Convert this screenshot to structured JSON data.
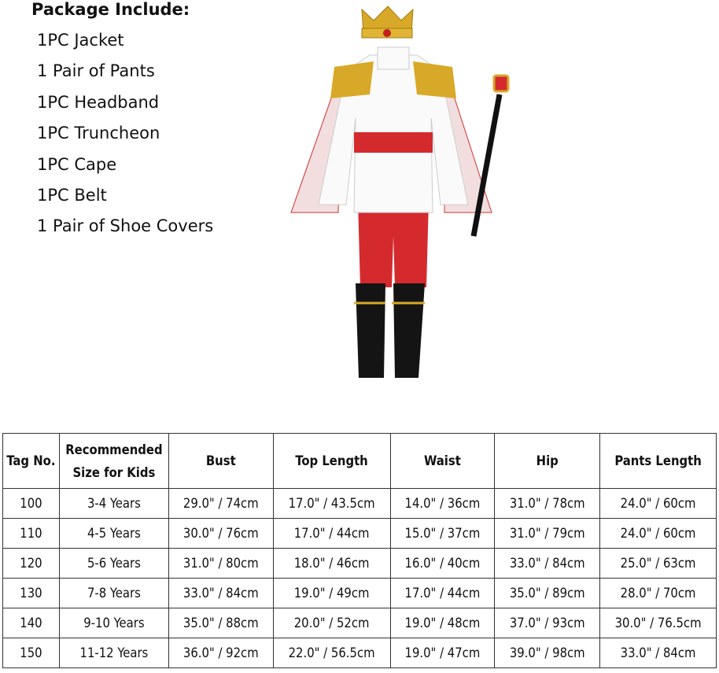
{
  "package": {
    "title": "Package Include:",
    "items": [
      "1PC Jacket",
      "1 Pair of Pants",
      "1PC Headband",
      "1PC Truncheon",
      "1PC Cape",
      "1PC Belt",
      "1 Pair of Shoe Covers"
    ]
  },
  "colors": {
    "costume_red": "#d42a2e",
    "gold": "#d8a928",
    "boot": "#141414"
  },
  "size_table": {
    "headers": [
      "Tag No.",
      "Recommended Size for Kids",
      "Bust",
      "Top Length",
      "Waist",
      "Hip",
      "Pants Length"
    ],
    "rows": [
      [
        "100",
        "3-4 Years",
        "29.0\" / 74cm",
        "17.0\" / 43.5cm",
        "14.0\" / 36cm",
        "31.0\" / 78cm",
        "24.0\" / 60cm"
      ],
      [
        "110",
        "4-5 Years",
        "30.0\" / 76cm",
        "17.0\" / 44cm",
        "15.0\" / 37cm",
        "31.0\" / 79cm",
        "24.0\" / 60cm"
      ],
      [
        "120",
        "5-6 Years",
        "31.0\" / 80cm",
        "18.0\" / 46cm",
        "16.0\" / 40cm",
        "33.0\" / 84cm",
        "25.0\" / 63cm"
      ],
      [
        "130",
        "7-8 Years",
        "33.0\" / 84cm",
        "19.0\" / 49cm",
        "17.0\" / 44cm",
        "35.0\" / 89cm",
        "28.0\" / 70cm"
      ],
      [
        "140",
        "9-10 Years",
        "35.0\" / 88cm",
        "20.0\" / 52cm",
        "19.0\" / 48cm",
        "37.0\" / 93cm",
        "30.0\" / 76.5cm"
      ],
      [
        "150",
        "11-12 Years",
        "36.0\" / 92cm",
        "22.0\" / 56.5cm",
        "19.0\" / 47cm",
        "39.0\" / 98cm",
        "33.0\" / 84cm"
      ]
    ]
  }
}
